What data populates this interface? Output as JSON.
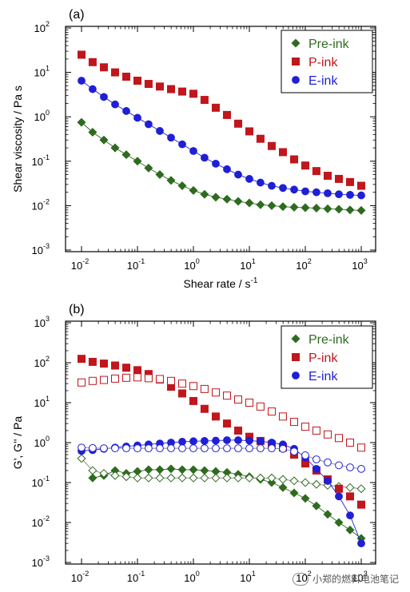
{
  "chart_data": [
    {
      "type": "scatter",
      "panel_label": "(a)",
      "xlabel": "Shear rate / s",
      "xlabel_sup": "-1",
      "ylabel": "Shear viscosity / Pa s",
      "xscale": "log",
      "yscale": "log",
      "xlim": [
        0.01,
        1000
      ],
      "ylim": [
        0.001,
        100
      ],
      "xticks": [
        "10",
        "10",
        "10",
        "10",
        "10",
        "10"
      ],
      "xtick_exps": [
        "-2",
        "-1",
        "0",
        "1",
        "2",
        "3"
      ],
      "yticks": [
        "10",
        "10",
        "10",
        "10",
        "10",
        "10"
      ],
      "ytick_exps": [
        "-3",
        "-2",
        "-1",
        "0",
        "1",
        "2"
      ],
      "legend_position": "top-right",
      "x": [
        0.01,
        0.0158,
        0.0251,
        0.0398,
        0.0631,
        0.1,
        0.158,
        0.251,
        0.398,
        0.631,
        1,
        1.58,
        2.51,
        3.98,
        6.31,
        10,
        15.8,
        25.1,
        39.8,
        63.1,
        100,
        158,
        251,
        398,
        631,
        1000
      ],
      "series": [
        {
          "name": "Pre-ink",
          "color": "#2e6b1f",
          "marker": "diamond",
          "filled": true,
          "line": true,
          "values": [
            0.75,
            0.45,
            0.3,
            0.2,
            0.14,
            0.1,
            0.07,
            0.05,
            0.037,
            0.028,
            0.022,
            0.018,
            0.0155,
            0.014,
            0.0125,
            0.0115,
            0.0105,
            0.01,
            0.0095,
            0.0092,
            0.009,
            0.0088,
            0.0085,
            0.0083,
            0.008,
            0.0078
          ]
        },
        {
          "name": "P-ink",
          "color": "#c0161c",
          "marker": "square",
          "filled": true,
          "line": false,
          "values": [
            25,
            17,
            13,
            10,
            8,
            6.5,
            5.5,
            4.8,
            4.2,
            3.7,
            3.3,
            2.4,
            1.6,
            1.1,
            0.7,
            0.47,
            0.32,
            0.22,
            0.16,
            0.11,
            0.08,
            0.06,
            0.047,
            0.04,
            0.034,
            0.028
          ]
        },
        {
          "name": "E-ink",
          "color": "#1f1fd6",
          "marker": "circle",
          "filled": true,
          "line": true,
          "values": [
            6.5,
            4.2,
            2.8,
            1.9,
            1.35,
            0.95,
            0.68,
            0.48,
            0.34,
            0.24,
            0.17,
            0.12,
            0.088,
            0.066,
            0.05,
            0.04,
            0.033,
            0.028,
            0.025,
            0.023,
            0.021,
            0.02,
            0.019,
            0.018,
            0.0175,
            0.017
          ]
        }
      ]
    },
    {
      "type": "scatter",
      "panel_label": "(b)",
      "xlabel": "Strain / %",
      "ylabel": "G', G'' / Pa",
      "xscale": "log",
      "yscale": "log",
      "xlim": [
        0.01,
        1000
      ],
      "ylim": [
        0.001,
        1000
      ],
      "xticks": [
        "10",
        "10",
        "10",
        "10",
        "10",
        "10"
      ],
      "xtick_exps": [
        "-2",
        "-1",
        "0",
        "1",
        "2",
        "3"
      ],
      "yticks": [
        "10",
        "10",
        "10",
        "10",
        "10",
        "10",
        "10"
      ],
      "ytick_exps": [
        "-3",
        "-2",
        "-1",
        "0",
        "1",
        "2",
        "3"
      ],
      "legend_position": "top-right",
      "x": [
        0.01,
        0.0158,
        0.0251,
        0.0398,
        0.0631,
        0.1,
        0.158,
        0.251,
        0.398,
        0.631,
        1,
        1.58,
        2.51,
        3.98,
        6.31,
        10,
        15.8,
        25.1,
        39.8,
        63.1,
        100,
        158,
        251,
        398,
        631,
        1000
      ],
      "series": [
        {
          "name": "Pre-ink",
          "modulus": "G'",
          "color": "#2e6b1f",
          "marker": "diamond",
          "filled": true,
          "line": true,
          "values": [
            null,
            0.13,
            0.15,
            0.2,
            0.17,
            0.19,
            0.21,
            0.21,
            0.22,
            0.21,
            0.21,
            0.2,
            0.19,
            0.18,
            0.16,
            0.14,
            0.12,
            0.1,
            0.075,
            0.055,
            0.04,
            0.026,
            0.016,
            0.01,
            0.0065,
            0.004
          ]
        },
        {
          "name": "Pre-ink",
          "modulus": "G''",
          "color": "#2e6b1f",
          "marker": "diamond",
          "filled": false,
          "line": true,
          "legend": false,
          "values": [
            0.4,
            0.2,
            0.17,
            0.15,
            0.14,
            0.13,
            0.13,
            0.13,
            0.13,
            0.13,
            0.13,
            0.13,
            0.13,
            0.13,
            0.13,
            0.13,
            0.13,
            0.13,
            0.12,
            0.11,
            0.1,
            0.09,
            0.085,
            0.08,
            0.075,
            0.07
          ]
        },
        {
          "name": "P-ink",
          "modulus": "G'",
          "color": "#c0161c",
          "marker": "square",
          "filled": true,
          "line": false,
          "values": [
            125,
            105,
            95,
            85,
            75,
            65,
            52,
            38,
            25,
            17,
            11,
            7,
            4.5,
            3,
            2,
            1.4,
            1.1,
            0.9,
            0.75,
            0.5,
            0.3,
            0.2,
            0.12,
            0.07,
            0.045,
            0.028
          ]
        },
        {
          "name": "P-ink",
          "modulus": "G''",
          "color": "#c0161c",
          "marker": "square",
          "filled": false,
          "line": false,
          "legend": false,
          "values": [
            32,
            35,
            37,
            40,
            42,
            43,
            41,
            39,
            35,
            30,
            26,
            22,
            18,
            15,
            12,
            10,
            8,
            6,
            4.5,
            3.3,
            2.5,
            2,
            1.6,
            1.3,
            1,
            0.75
          ]
        },
        {
          "name": "E-ink",
          "modulus": "G'",
          "color": "#1f1fd6",
          "marker": "circle",
          "filled": true,
          "line": true,
          "values": [
            0.62,
            0.65,
            0.7,
            0.75,
            0.8,
            0.85,
            0.9,
            0.95,
            1.0,
            1.05,
            1.08,
            1.1,
            1.12,
            1.15,
            1.15,
            1.12,
            1.08,
            1.0,
            0.9,
            0.7,
            0.42,
            0.22,
            0.11,
            0.045,
            0.015,
            0.003
          ]
        },
        {
          "name": "E-ink",
          "modulus": "G''",
          "color": "#1f1fd6",
          "marker": "circle",
          "filled": false,
          "line": true,
          "legend": false,
          "values": [
            0.75,
            0.73,
            0.72,
            0.72,
            0.72,
            0.72,
            0.72,
            0.72,
            0.72,
            0.72,
            0.72,
            0.72,
            0.72,
            0.72,
            0.72,
            0.72,
            0.72,
            0.72,
            0.7,
            0.6,
            0.48,
            0.38,
            0.32,
            0.27,
            0.24,
            0.22
          ]
        }
      ]
    }
  ],
  "watermark": "小郑的燃料电池笔记"
}
